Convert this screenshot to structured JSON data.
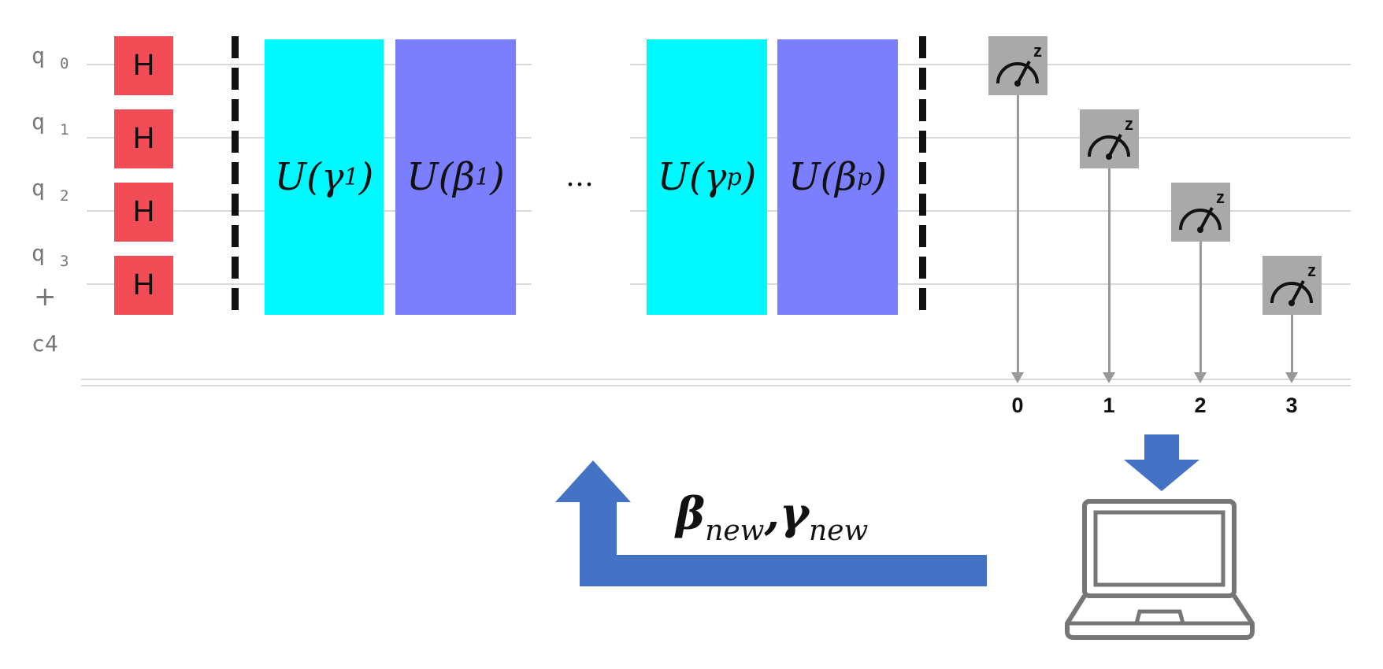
{
  "qubits": [
    {
      "label": "q",
      "index": "0"
    },
    {
      "label": "q",
      "index": "1"
    },
    {
      "label": "q",
      "index": "2"
    },
    {
      "label": "q",
      "index": "3"
    }
  ],
  "add_register": "+",
  "classical_register": "c4",
  "hadamard_label": "H",
  "layers": {
    "gamma_1": {
      "base": "U(γ",
      "sub": "1",
      "close": ")"
    },
    "beta_1": {
      "base": "U(β",
      "sub": "1",
      "close": ")"
    },
    "ellipsis": "…",
    "gamma_p": {
      "base": "U(γ",
      "sub": "p",
      "close": ")"
    },
    "beta_p": {
      "base": "U(β",
      "sub": "p",
      "close": ")"
    }
  },
  "measure_basis": "z",
  "classical_bits": [
    "0",
    "1",
    "2",
    "3"
  ],
  "feedback": {
    "beta": "β",
    "gamma": "γ",
    "sub": "new",
    "comma": ","
  },
  "colors": {
    "hadamard": "#f24c57",
    "cost_layer": "#00f9ff",
    "mixer_layer": "#7b7ffe",
    "measure": "#a9a9a9",
    "feedback_arrow": "#4472c4",
    "laptop": "#767676"
  },
  "icons": [
    "measurement-icon",
    "laptop-icon",
    "down-arrow-icon",
    "feedback-arrow-icon"
  ]
}
